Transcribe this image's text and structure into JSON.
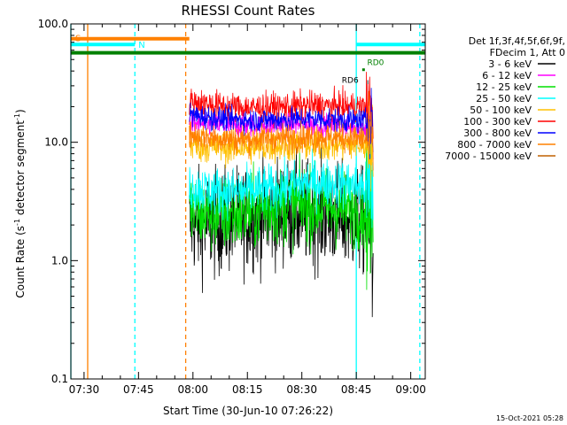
{
  "chart_data": {
    "type": "line",
    "title": "RHESSI Count Rates",
    "xlabel": "Start Time (30-Jun-10 07:26:22)",
    "ylabel_main": "Count Rate (s",
    "ylabel_sup": "-1",
    "ylabel_mid": " detector segment",
    "ylabel_end": ")",
    "y_scale": "log",
    "xlim": [
      "07:26:22",
      "09:04:00"
    ],
    "ylim": [
      0.1,
      100.0
    ],
    "x_ticks": [
      {
        "t": "07:30",
        "label": "07:30"
      },
      {
        "t": "07:45",
        "label": "07:45"
      },
      {
        "t": "08:00",
        "label": "08:00"
      },
      {
        "t": "08:15",
        "label": "08:15"
      },
      {
        "t": "08:30",
        "label": "08:30"
      },
      {
        "t": "08:45",
        "label": "08:45"
      },
      {
        "t": "09:00",
        "label": "09:00"
      }
    ],
    "y_ticks": [
      {
        "v": 0.1,
        "label": "0.1"
      },
      {
        "v": 1.0,
        "label": "1.0"
      },
      {
        "v": 10.0,
        "label": "10.0"
      },
      {
        "v": 100.0,
        "label": "100.0"
      }
    ],
    "legend_header": [
      "Det 1f,3f,4f,5f,6f,9f,",
      "FDecim 1, Att 0"
    ],
    "legend_placement": "right",
    "data_start": "07:59:00",
    "data_end": "08:49:30",
    "series": [
      {
        "name": "3 - 6 keV",
        "color": "#000000",
        "values": [
          2.1,
          2.0,
          2.2,
          2.3,
          2.5,
          2.6,
          2.5,
          2.4,
          2.2,
          2.1
        ]
      },
      {
        "name": "6 - 12 keV",
        "color": "#ff00ff",
        "values": [
          14.5,
          14.0,
          13.8,
          13.9,
          14.2,
          14.3,
          14.0,
          13.8,
          13.5,
          13.0
        ]
      },
      {
        "name": "12 - 25 keV",
        "color": "#00e000",
        "values": [
          2.6,
          2.5,
          2.4,
          2.6,
          2.8,
          3.0,
          2.9,
          2.8,
          2.7,
          2.6
        ]
      },
      {
        "name": "25 - 50 keV",
        "color": "#00ffff",
        "values": [
          4.2,
          3.9,
          3.8,
          3.9,
          4.0,
          4.3,
          4.6,
          4.5,
          4.4,
          4.0
        ]
      },
      {
        "name": "50 - 100 keV",
        "color": "#ffc000",
        "values": [
          9.5,
          9.2,
          9.0,
          9.1,
          9.3,
          9.4,
          9.6,
          9.5,
          9.6,
          9.3
        ]
      },
      {
        "name": "100 - 300 keV",
        "color": "#ff0000",
        "values": [
          22.0,
          21.0,
          20.0,
          19.5,
          19.8,
          20.0,
          20.5,
          20.2,
          20.0,
          19.5
        ]
      },
      {
        "name": "300 - 800 keV",
        "color": "#0000ff",
        "values": [
          17.0,
          16.2,
          15.6,
          15.3,
          15.5,
          15.6,
          15.8,
          15.5,
          15.3,
          15.0
        ]
      },
      {
        "name": "800 - 7000 keV",
        "color": "#ff8000",
        "values": [
          11.5,
          11.0,
          10.6,
          10.6,
          10.8,
          10.9,
          11.0,
          11.0,
          10.8,
          10.5
        ]
      },
      {
        "name": "7000 - 15000 keV",
        "color": "#c06000",
        "values": []
      }
    ],
    "annotations": {
      "flags": [
        {
          "label": "S",
          "color": "#ff8000",
          "start": "07:26:22",
          "end": "07:59:00",
          "y": 75.0
        },
        {
          "label": "N",
          "color": "#00ffff",
          "start": "07:26:22",
          "end": "07:44:00",
          "y": 67.0
        },
        {
          "label": "",
          "color": "#00ffff",
          "start": "08:45:00",
          "end": "09:04:00",
          "y": 67.0
        },
        {
          "label": "",
          "color": "#008000",
          "start": "07:26:22",
          "end": "09:04:00",
          "y": 57.0
        }
      ],
      "small_labels": [
        {
          "label": "RD6",
          "t": "08:41:00",
          "y": 48.0,
          "color": "#008000"
        },
        {
          "label": "RD0",
          "t": "08:48:00",
          "y": 55.0,
          "color": "#008000"
        }
      ],
      "markers": [
        {
          "t": "08:47:00",
          "y": 50.0,
          "color": "#008000"
        }
      ],
      "vlines": [
        {
          "t": "07:26:22",
          "style": "solid",
          "color": "#00ffff"
        },
        {
          "t": "07:31:00",
          "style": "solid",
          "color": "#ff8000"
        },
        {
          "t": "07:44:00",
          "style": "dashed",
          "color": "#00ffff"
        },
        {
          "t": "07:58:00",
          "style": "dashed",
          "color": "#ff8000"
        },
        {
          "t": "08:45:00",
          "style": "solid",
          "color": "#00ffff"
        },
        {
          "t": "09:02:30",
          "style": "dashed",
          "color": "#00ffff"
        }
      ]
    },
    "footer": "15-Oct-2021 05:28"
  }
}
